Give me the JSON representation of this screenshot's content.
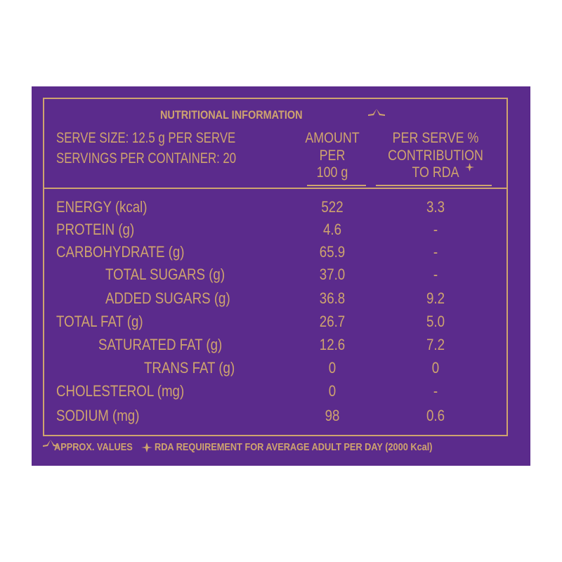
{
  "title": "NUTRITIONAL INFORMATION",
  "serve_size": "SERVE SIZE: 12.5 g PER SERVE",
  "servings": "SERVINGS PER CONTAINER: 20",
  "columns": [
    [
      "AMOUNT",
      "PER",
      "100 g"
    ],
    [
      "PER SERVE %",
      "CONTRIBUTION",
      "TO RDA"
    ]
  ],
  "rows": [
    [
      "ENERGY (kcal)",
      "522",
      "3.3"
    ],
    [
      "PROTEIN (g)",
      "4.6",
      "-"
    ],
    [
      "CARBOHYDRATE (g)",
      "65.9",
      "-"
    ],
    [
      "TOTAL SUGARS (g)",
      "37.0",
      "-"
    ],
    [
      "ADDED SUGARS (g)",
      "36.8",
      "9.2"
    ],
    [
      "TOTAL FAT (g)",
      "26.7",
      "5.0"
    ],
    [
      "SATURATED FAT (g)",
      "12.6",
      "7.2"
    ],
    [
      "TRANS FAT (g)",
      "0",
      "0"
    ],
    [
      "CHOLESTEROL (mg)",
      "0",
      "-"
    ],
    [
      "SODIUM  (mg)",
      "98",
      "0.6"
    ]
  ],
  "footer": "APPROX. VALUES",
  "footer_note": "RDA REQUIREMENT FOR AVERAGE ADULT PER DAY (2000 Kcal)"
}
